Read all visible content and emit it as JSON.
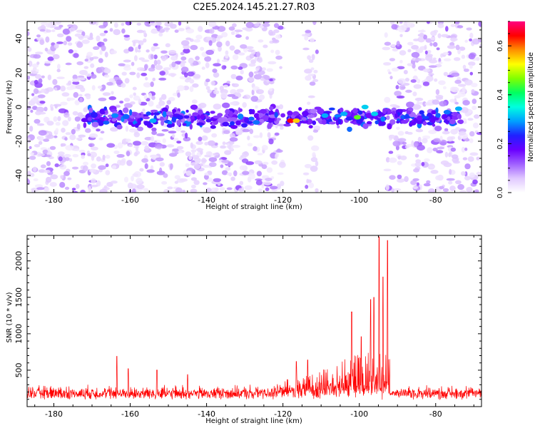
{
  "figure_title": "C2E5.2024.145.21.27.R03",
  "chart_data": [
    {
      "type": "heatmap",
      "title": "",
      "xlabel": "Height of straight line (km)",
      "ylabel": "Frequency (Hz)",
      "xlim": [
        -187,
        -68
      ],
      "ylim": [
        -50,
        50
      ],
      "xticks": [
        -180,
        -160,
        -140,
        -120,
        -100,
        -80
      ],
      "yticks": [
        -40,
        -20,
        0,
        20,
        40
      ],
      "colorbar": {
        "label": "Normalized spectral amplitude",
        "range": [
          0,
          0.7
        ],
        "ticks": [
          "0.0",
          "0.2",
          "0.4",
          "0.6"
        ],
        "colormap": [
          "#ffffff",
          "#e0c8ff",
          "#a060ff",
          "#6a00ff",
          "#2020ff",
          "#00a0ff",
          "#00ffe0",
          "#00ff60",
          "#80ff00",
          "#ffff00",
          "#ff9000",
          "#ff0000",
          "#ff0080"
        ]
      },
      "gap_regions_km": [
        [
          -120,
          -114
        ],
        [
          -111,
          -93
        ]
      ],
      "band": {
        "center_hz": -6,
        "extent_km": [
          -172,
          -73
        ],
        "hot_spots": [
          {
            "x": -118,
            "y": -8,
            "v": 0.65
          },
          {
            "x": -116.5,
            "y": -8,
            "v": 0.55
          },
          {
            "x": -100.5,
            "y": -6,
            "v": 0.45
          },
          {
            "x": -109,
            "y": -5,
            "v": 0.3
          },
          {
            "x": -104,
            "y": -4,
            "v": 0.3
          },
          {
            "x": -98.5,
            "y": 0,
            "v": 0.32
          },
          {
            "x": -96,
            "y": -4,
            "v": 0.32
          },
          {
            "x": -154,
            "y": -8,
            "v": 0.3
          },
          {
            "x": -164,
            "y": -5,
            "v": 0.28
          },
          {
            "x": -127,
            "y": -9,
            "v": 0.27
          },
          {
            "x": -77,
            "y": -3,
            "v": 0.27
          },
          {
            "x": -74,
            "y": -1,
            "v": 0.3
          },
          {
            "x": -147,
            "y": -6,
            "v": 0.22
          },
          {
            "x": -135,
            "y": -10,
            "v": 0.2
          }
        ]
      }
    },
    {
      "type": "line",
      "title": "",
      "xlabel": "Height of straight line (km)",
      "ylabel": "SNR (10 * v/v)",
      "xlim": [
        -187,
        -68
      ],
      "ylim": [
        0,
        2350
      ],
      "xticks": [
        -180,
        -160,
        -140,
        -120,
        -100,
        -80
      ],
      "yticks": [
        500,
        1000,
        1500,
        2000
      ],
      "series": [
        {
          "color": "#ff0000",
          "baseline": 150,
          "peaks": [
            {
              "x": -163.5,
              "y": 690
            },
            {
              "x": -160.5,
              "y": 520
            },
            {
              "x": -153,
              "y": 500
            },
            {
              "x": -145,
              "y": 440
            },
            {
              "x": -116.5,
              "y": 620
            },
            {
              "x": -113.5,
              "y": 640
            },
            {
              "x": -102,
              "y": 1300
            },
            {
              "x": -99.5,
              "y": 960
            },
            {
              "x": -97,
              "y": 1470
            },
            {
              "x": -96.2,
              "y": 1500
            },
            {
              "x": -94.8,
              "y": 2330
            },
            {
              "x": -93.8,
              "y": 1780
            },
            {
              "x": -92.6,
              "y": 2280
            }
          ]
        }
      ]
    }
  ]
}
